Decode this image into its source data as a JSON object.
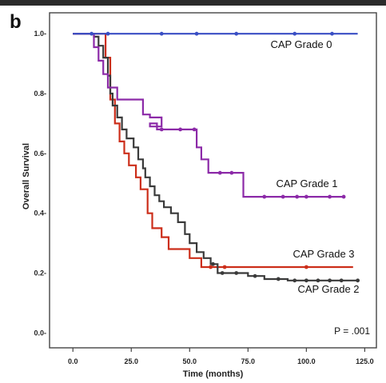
{
  "panel_letter": "b",
  "chart_data": {
    "type": "line",
    "step": true,
    "xlabel": "Time (months)",
    "ylabel": "Overall Survival",
    "xlim": [
      -10,
      130
    ],
    "ylim": [
      -0.05,
      1.07
    ],
    "xticks": [
      0,
      25,
      50,
      75,
      100,
      125
    ],
    "xtick_labels": [
      "0.0",
      "25.0",
      "50.0",
      "75.0",
      "100.0",
      "125.0"
    ],
    "yticks": [
      0,
      0.2,
      0.4,
      0.6,
      0.8,
      1.0
    ],
    "ytick_labels": [
      "0.0-",
      "0.2-",
      "0.4-",
      "0.6-",
      "0.8-",
      "1.0-"
    ],
    "annotation": "P = .001",
    "series": [
      {
        "name": "CAP Grade 0",
        "color": "#3a4fc4",
        "points": [
          [
            0,
            1.0
          ],
          [
            122,
            1.0
          ]
        ],
        "censor": [
          [
            8,
            1.0
          ],
          [
            15,
            1.0
          ],
          [
            38,
            1.0
          ],
          [
            53,
            1.0
          ],
          [
            70,
            1.0
          ],
          [
            95,
            1.0
          ],
          [
            111,
            1.0
          ]
        ]
      },
      {
        "name": "CAP Grade 1",
        "color": "#8c2aa8",
        "points": [
          [
            0,
            1.0
          ],
          [
            9,
            1.0
          ],
          [
            9,
            0.955
          ],
          [
            11,
            0.955
          ],
          [
            11,
            0.91
          ],
          [
            13,
            0.91
          ],
          [
            13,
            0.865
          ],
          [
            15,
            0.865
          ],
          [
            15,
            0.82
          ],
          [
            19,
            0.82
          ],
          [
            19,
            0.78
          ],
          [
            30,
            0.78
          ],
          [
            30,
            0.73
          ],
          [
            33,
            0.73
          ],
          [
            33,
            0.72
          ],
          [
            38,
            0.72
          ],
          [
            38,
            0.69
          ],
          [
            33,
            0.69
          ],
          [
            33,
            0.7
          ],
          [
            36,
            0.7
          ],
          [
            36,
            0.68
          ],
          [
            53,
            0.68
          ],
          [
            53,
            0.62
          ],
          [
            55,
            0.62
          ],
          [
            55,
            0.58
          ],
          [
            58,
            0.58
          ],
          [
            58,
            0.535
          ],
          [
            73,
            0.535
          ],
          [
            73,
            0.455
          ],
          [
            116,
            0.455
          ]
        ],
        "censor": [
          [
            38,
            0.68
          ],
          [
            46,
            0.68
          ],
          [
            52,
            0.68
          ],
          [
            63,
            0.535
          ],
          [
            68,
            0.535
          ],
          [
            82,
            0.455
          ],
          [
            90,
            0.455
          ],
          [
            96,
            0.455
          ],
          [
            100,
            0.455
          ],
          [
            110,
            0.455
          ],
          [
            116,
            0.455
          ]
        ]
      },
      {
        "name": "CAP Grade 2",
        "color": "#3a3a3a",
        "points": [
          [
            0,
            1.0
          ],
          [
            9,
            1.0
          ],
          [
            9,
            0.99
          ],
          [
            11,
            0.99
          ],
          [
            11,
            0.96
          ],
          [
            13,
            0.96
          ],
          [
            13,
            0.92
          ],
          [
            15,
            0.92
          ],
          [
            15,
            0.86
          ],
          [
            16,
            0.86
          ],
          [
            16,
            0.8
          ],
          [
            17,
            0.8
          ],
          [
            17,
            0.76
          ],
          [
            19,
            0.76
          ],
          [
            19,
            0.72
          ],
          [
            21,
            0.72
          ],
          [
            21,
            0.68
          ],
          [
            23,
            0.68
          ],
          [
            23,
            0.65
          ],
          [
            26,
            0.65
          ],
          [
            26,
            0.62
          ],
          [
            28,
            0.62
          ],
          [
            28,
            0.58
          ],
          [
            30,
            0.58
          ],
          [
            30,
            0.55
          ],
          [
            31,
            0.55
          ],
          [
            31,
            0.52
          ],
          [
            33,
            0.52
          ],
          [
            33,
            0.49
          ],
          [
            35,
            0.49
          ],
          [
            35,
            0.46
          ],
          [
            37,
            0.46
          ],
          [
            37,
            0.44
          ],
          [
            39,
            0.44
          ],
          [
            39,
            0.42
          ],
          [
            42,
            0.42
          ],
          [
            42,
            0.4
          ],
          [
            45,
            0.4
          ],
          [
            45,
            0.37
          ],
          [
            48,
            0.37
          ],
          [
            48,
            0.33
          ],
          [
            50,
            0.33
          ],
          [
            50,
            0.3
          ],
          [
            53,
            0.3
          ],
          [
            53,
            0.27
          ],
          [
            56,
            0.27
          ],
          [
            56,
            0.25
          ],
          [
            59,
            0.25
          ],
          [
            59,
            0.23
          ],
          [
            62,
            0.23
          ],
          [
            62,
            0.2
          ],
          [
            75,
            0.2
          ],
          [
            75,
            0.19
          ],
          [
            82,
            0.19
          ],
          [
            82,
            0.18
          ],
          [
            92,
            0.18
          ],
          [
            92,
            0.175
          ],
          [
            122,
            0.175
          ]
        ],
        "censor": [
          [
            60,
            0.23
          ],
          [
            64,
            0.2
          ],
          [
            70,
            0.2
          ],
          [
            78,
            0.19
          ],
          [
            88,
            0.18
          ],
          [
            95,
            0.175
          ],
          [
            100,
            0.175
          ],
          [
            105,
            0.175
          ],
          [
            110,
            0.175
          ],
          [
            115,
            0.175
          ],
          [
            122,
            0.175
          ]
        ]
      },
      {
        "name": "CAP Grade 3",
        "color": "#cc2e1a",
        "points": [
          [
            0,
            1.0
          ],
          [
            14,
            1.0
          ],
          [
            14,
            0.92
          ],
          [
            16,
            0.92
          ],
          [
            16,
            0.78
          ],
          [
            18,
            0.78
          ],
          [
            18,
            0.7
          ],
          [
            20,
            0.7
          ],
          [
            20,
            0.64
          ],
          [
            22,
            0.64
          ],
          [
            22,
            0.6
          ],
          [
            24,
            0.6
          ],
          [
            24,
            0.56
          ],
          [
            27,
            0.56
          ],
          [
            27,
            0.52
          ],
          [
            29,
            0.52
          ],
          [
            29,
            0.48
          ],
          [
            32,
            0.48
          ],
          [
            32,
            0.4
          ],
          [
            34,
            0.4
          ],
          [
            34,
            0.35
          ],
          [
            38,
            0.35
          ],
          [
            38,
            0.32
          ],
          [
            41,
            0.32
          ],
          [
            41,
            0.28
          ],
          [
            50,
            0.28
          ],
          [
            50,
            0.25
          ],
          [
            55,
            0.25
          ],
          [
            55,
            0.22
          ],
          [
            120,
            0.22
          ]
        ],
        "censor": [
          [
            59,
            0.22
          ],
          [
            65,
            0.22
          ],
          [
            100,
            0.22
          ]
        ]
      }
    ]
  }
}
